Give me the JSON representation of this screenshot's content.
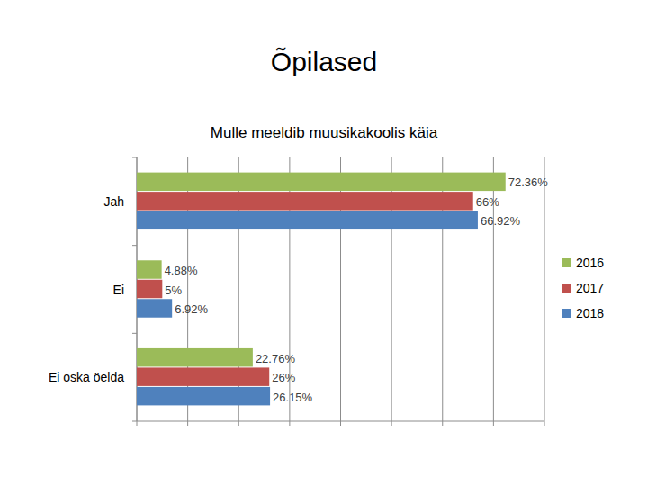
{
  "chart_data": {
    "type": "bar",
    "orientation": "horizontal",
    "title": "Õpilased",
    "subtitle": "Mulle meeldib muusikakoolis käia",
    "categories": [
      "Jah",
      "Ei",
      "Ei oska öelda"
    ],
    "series": [
      {
        "name": "2016",
        "color": "#9bbb59",
        "values": [
          72.36,
          4.88,
          22.76
        ],
        "value_labels": [
          "72.36%",
          "4.88%",
          "22.76%"
        ]
      },
      {
        "name": "2017",
        "color": "#c0504d",
        "values": [
          66,
          5,
          26
        ],
        "value_labels": [
          "66%",
          "5%",
          "26%"
        ]
      },
      {
        "name": "2018",
        "color": "#4f81bd",
        "values": [
          66.92,
          6.92,
          26.15
        ],
        "value_labels": [
          "66.92%",
          "6.92%",
          "26.15%"
        ]
      }
    ],
    "xlim": [
      0,
      80
    ],
    "xticks": [
      0,
      10,
      20,
      30,
      40,
      50,
      60,
      70,
      80
    ],
    "grid": true,
    "legend": "right",
    "data_labels": true,
    "tick_labels": "y"
  }
}
